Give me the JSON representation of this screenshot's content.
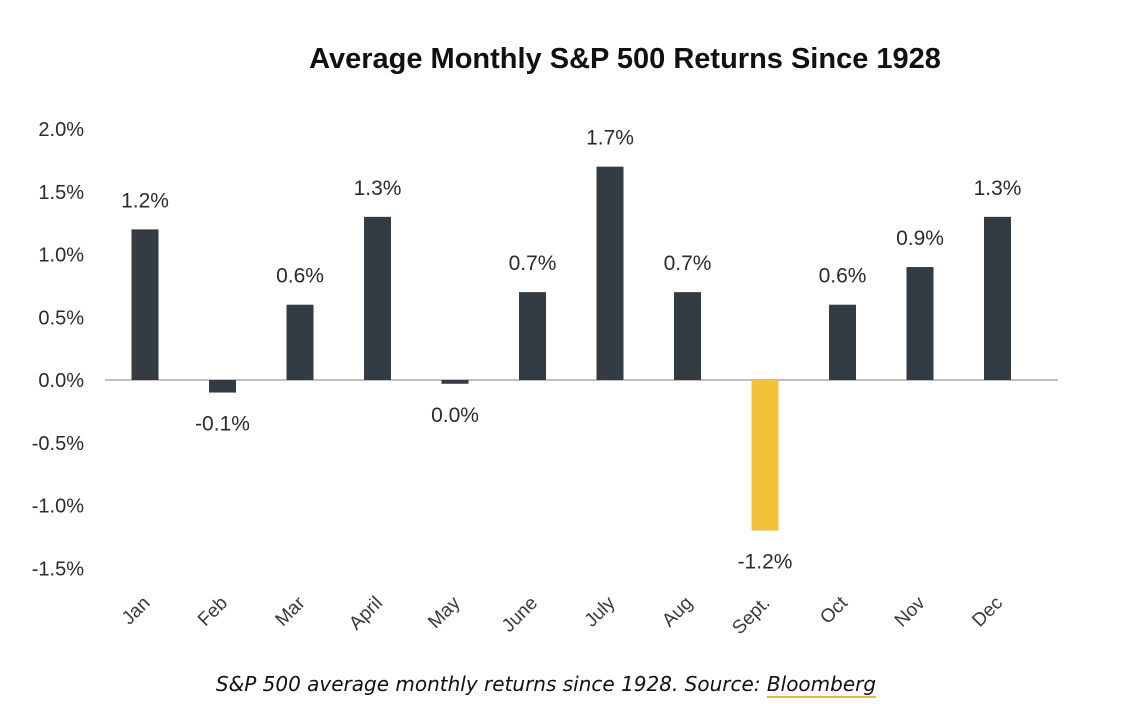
{
  "chart_data": {
    "type": "bar",
    "title": "Average Monthly S&P 500 Returns Since 1928",
    "categories": [
      "Jan",
      "Feb",
      "Mar",
      "April",
      "May",
      "June",
      "July",
      "Aug",
      "Sept.",
      "Oct",
      "Nov",
      "Dec"
    ],
    "values": [
      1.2,
      -0.1,
      0.6,
      1.3,
      -0.03,
      0.7,
      1.7,
      0.7,
      -1.2,
      0.6,
      0.9,
      1.3
    ],
    "data_labels": [
      "1.2%",
      "-0.1%",
      "0.6%",
      "1.3%",
      "0.0%",
      "0.7%",
      "1.7%",
      "0.7%",
      "-1.2%",
      "0.6%",
      "0.9%",
      "1.3%"
    ],
    "yticks": [
      "2.0%",
      "1.5%",
      "1.0%",
      "0.5%",
      "0.0%",
      "-0.5%",
      "-1.0%",
      "-1.5%"
    ],
    "ytick_values": [
      2.0,
      1.5,
      1.0,
      0.5,
      0.0,
      -0.5,
      -1.0,
      -1.5
    ],
    "ylim": [
      -1.5,
      2.0
    ],
    "xlabel": "",
    "ylabel": "",
    "grid": false,
    "highlight_index": 8,
    "colors": {
      "bar": "#333b43",
      "highlight": "#f3c13a",
      "zero_line": "#a9a9b4"
    }
  },
  "caption": {
    "text": "S&P 500 average monthly returns since 1928. Source: ",
    "link": "Bloomberg"
  }
}
